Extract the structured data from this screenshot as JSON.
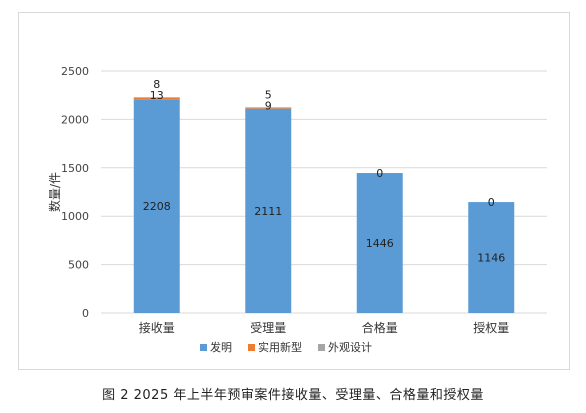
{
  "caption": "图 2   2025 年上半年预审案件接收量、受理量、合格量和授权量",
  "chart_data": {
    "type": "bar",
    "stacked": true,
    "categories": [
      "接收量",
      "受理量",
      "合格量",
      "授权量"
    ],
    "series": [
      {
        "name": "发明",
        "values": [
          2208,
          2111,
          1446,
          1146
        ],
        "color": "#5b9bd5"
      },
      {
        "name": "实用新型",
        "values": [
          13,
          9,
          0,
          0
        ],
        "color": "#ed7d31"
      },
      {
        "name": "外观设计",
        "values": [
          8,
          5,
          0,
          0
        ],
        "color": "#a5a5a5"
      }
    ],
    "data_labels": [
      {
        "category": "接收量",
        "series": "发明",
        "text": "2208"
      },
      {
        "category": "受理量",
        "series": "发明",
        "text": "2111"
      },
      {
        "category": "合格量",
        "series": "发明",
        "text": "1446"
      },
      {
        "category": "授权量",
        "series": "发明",
        "text": "1146"
      },
      {
        "category": "接收量",
        "series": "实用新型",
        "text": "13"
      },
      {
        "category": "受理量",
        "series": "实用新型",
        "text": "9"
      },
      {
        "category": "接收量",
        "series": "外观设计",
        "text": "8"
      },
      {
        "category": "受理量",
        "series": "外观设计",
        "text": "5"
      },
      {
        "category": "合格量",
        "series": "top",
        "text": "0"
      },
      {
        "category": "授权量",
        "series": "top",
        "text": "0"
      }
    ],
    "ylabel": "数量/件",
    "ylim": [
      0,
      2500
    ],
    "yticks": [
      0,
      500,
      1000,
      1500,
      2000,
      2500
    ],
    "grid": true,
    "legend": "bottom"
  }
}
